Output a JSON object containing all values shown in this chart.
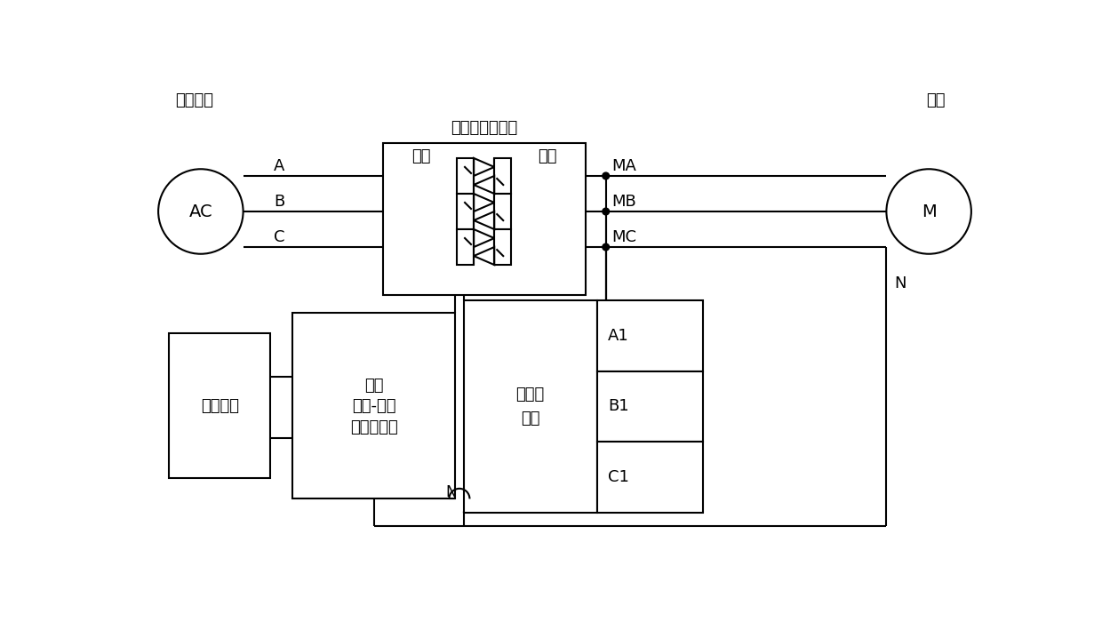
{
  "bg_color": "#ffffff",
  "lw": 1.5,
  "font_size": 13,
  "ac_label": "AC",
  "ac_sub": "系统电源",
  "m_label": "M",
  "m_sub": "负荷",
  "triac_title": "双向晶闸管模块",
  "triac_in": "输入",
  "triac_out": "输出",
  "dc_l1": "双向",
  "dc_l2": "直流-直流",
  "dc_l3": "变换器模块",
  "inv_l1": "逆变器",
  "inv_l2": "模块",
  "stor_l": "储能模块",
  "line_A": "A",
  "line_B": "B",
  "line_C": "C",
  "ma": "MA",
  "mb": "MB",
  "mc": "MC",
  "a1": "A1",
  "b1": "B1",
  "c1": "C1",
  "n": "N"
}
